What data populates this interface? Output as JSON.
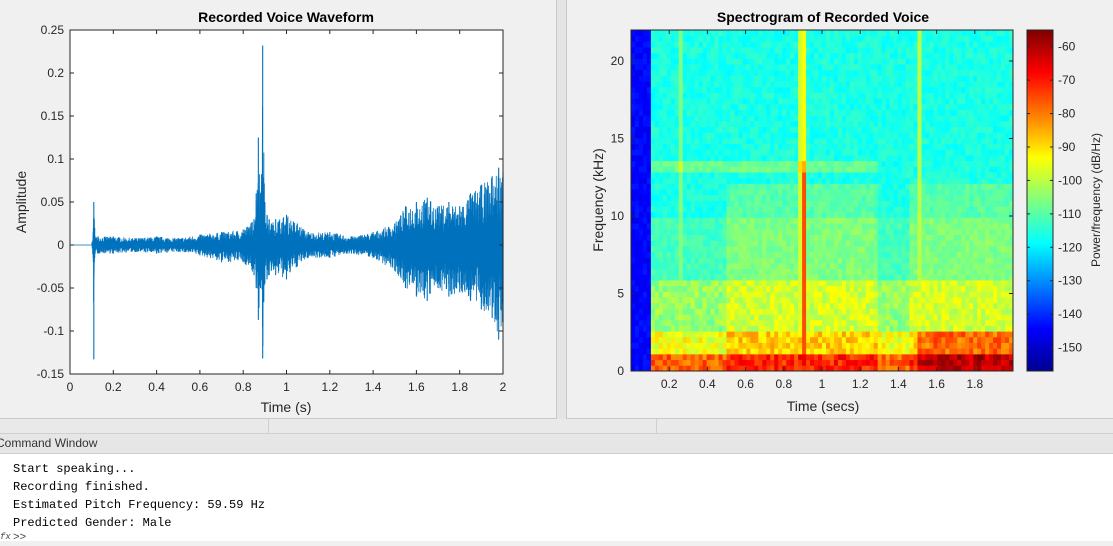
{
  "chart_data": [
    {
      "type": "line",
      "title": "Recorded Voice Waveform",
      "xlabel": "Time (s)",
      "ylabel": "Amplitude",
      "xlim": [
        0,
        2
      ],
      "ylim": [
        -0.15,
        0.25
      ],
      "x_ticks": [
        "0",
        "0.2",
        "0.4",
        "0.6",
        "0.8",
        "1",
        "1.2",
        "1.4",
        "1.6",
        "1.8",
        "2"
      ],
      "y_ticks": [
        "-0.15",
        "-0.1",
        "-0.05",
        "0",
        "0.05",
        "0.1",
        "0.15",
        "0.2",
        "0.25"
      ],
      "series_color": "#0072bd",
      "series": [
        {
          "x": [
            0,
            0.1,
            0.108,
            0.11,
            0.112,
            0.114,
            0.116,
            0.13,
            0.2,
            0.3,
            0.4,
            0.5,
            0.6,
            0.7,
            0.8,
            0.85,
            0.86,
            0.87,
            0.88,
            0.89,
            0.9,
            0.91,
            0.92,
            0.93,
            0.95,
            1.0,
            1.05,
            1.1,
            1.2,
            1.3,
            1.4,
            1.5,
            1.55,
            1.6,
            1.65,
            1.7,
            1.75,
            1.8,
            1.85,
            1.9,
            1.95,
            1.98,
            2.0
          ],
          "max": [
            0,
            0,
            0.02,
            0.05,
            0.03,
            0.02,
            0.01,
            0.01,
            0.01,
            0.008,
            0.01,
            0.008,
            0.012,
            0.015,
            0.018,
            0.03,
            0.06,
            0.125,
            0.06,
            0.232,
            0.05,
            0.035,
            0.03,
            0.025,
            0.03,
            0.035,
            0.025,
            0.015,
            0.015,
            0.01,
            0.015,
            0.025,
            0.045,
            0.05,
            0.055,
            0.045,
            0.05,
            0.045,
            0.06,
            0.07,
            0.08,
            0.09,
            0.085
          ],
          "min": [
            0,
            0,
            -0.02,
            -0.133,
            -0.02,
            -0.015,
            -0.01,
            -0.01,
            -0.01,
            -0.008,
            -0.01,
            -0.008,
            -0.012,
            -0.02,
            -0.02,
            -0.035,
            -0.05,
            -0.087,
            -0.05,
            -0.132,
            -0.045,
            -0.04,
            -0.035,
            -0.03,
            -0.035,
            -0.04,
            -0.025,
            -0.015,
            -0.015,
            -0.01,
            -0.015,
            -0.03,
            -0.05,
            -0.06,
            -0.065,
            -0.05,
            -0.06,
            -0.055,
            -0.065,
            -0.075,
            -0.085,
            -0.11,
            -0.09
          ]
        }
      ]
    },
    {
      "type": "heatmap",
      "title": "Spectrogram of Recorded Voice",
      "xlabel": "Time (secs)",
      "ylabel": "Frequency (kHz)",
      "xlim": [
        0,
        2
      ],
      "ylim": [
        0,
        22
      ],
      "x_ticks": [
        "0.2",
        "0.4",
        "0.6",
        "0.8",
        "1",
        "1.2",
        "1.4",
        "1.6",
        "1.8"
      ],
      "y_ticks": [
        "0",
        "5",
        "10",
        "15",
        "20"
      ],
      "colorbar_label": "Power/frequency (dB/Hz)",
      "colorbar_ticks": [
        "-60",
        "-70",
        "-80",
        "-90",
        "-100",
        "-110",
        "-120",
        "-130",
        "-140",
        "-150"
      ],
      "colorbar_range": [
        -157,
        -55
      ],
      "colormap": [
        "#00008f",
        "#0000ff",
        "#00ffff",
        "#ffff00",
        "#ff0000",
        "#800000"
      ]
    }
  ],
  "command_window": {
    "title": "Command Window",
    "lines": [
      "Start speaking...",
      "Recording finished.",
      "Estimated Pitch Frequency: 59.59 Hz",
      "Predicted Gender: Male"
    ],
    "prompt": ">>",
    "prompt_marker": "fx"
  }
}
